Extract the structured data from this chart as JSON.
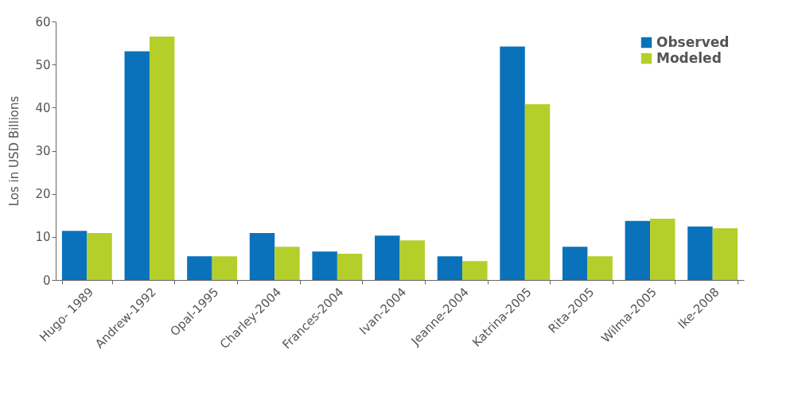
{
  "chart_data": {
    "type": "bar",
    "ylabel": "Los in USD Billions",
    "categories": [
      "Hugo- 1989",
      "Andrew-1992",
      "Opal-1995",
      "Charley-2004",
      "Frances-2004",
      "Ivan-2004",
      "Jeanne-2004",
      "Katrina-2005",
      "Rita-2005",
      "Wilma-2005",
      "Ike-2008"
    ],
    "series": [
      {
        "name": "Observed",
        "color": "#0a72ba",
        "values": [
          11.4,
          53.1,
          5.5,
          10.9,
          6.6,
          10.3,
          5.5,
          54.2,
          7.7,
          13.7,
          12.4
        ]
      },
      {
        "name": "Modeled",
        "color": "#b5cf2a",
        "values": [
          10.9,
          56.5,
          5.5,
          7.7,
          6.1,
          9.2,
          4.4,
          40.8,
          5.5,
          14.2,
          12.0
        ]
      }
    ],
    "ylim": [
      0,
      60
    ],
    "yticks": [
      0,
      10,
      20,
      30,
      40,
      50,
      60
    ],
    "grid": false,
    "legend": "top right"
  }
}
